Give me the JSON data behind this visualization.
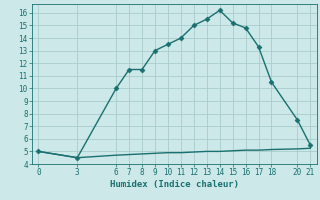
{
  "xlabel": "Humidex (Indice chaleur)",
  "x_data": [
    0,
    3,
    6,
    7,
    8,
    9,
    10,
    11,
    12,
    13,
    14,
    15,
    16,
    17,
    18,
    20,
    21
  ],
  "y_data": [
    5,
    4.5,
    10,
    11.5,
    11.5,
    13,
    13.5,
    14,
    15,
    15.5,
    16.2,
    15.2,
    14.8,
    13.3,
    10.5,
    7.5,
    5.5
  ],
  "y_data2": [
    5,
    4.5,
    4.7,
    4.75,
    4.8,
    4.85,
    4.9,
    4.9,
    4.95,
    5.0,
    5.0,
    5.05,
    5.1,
    5.1,
    5.15,
    5.2,
    5.25
  ],
  "line_color": "#1a7070",
  "bg_color": "#cce8e8",
  "grid_color": "#aacccc",
  "tick_color": "#1a7070",
  "xlim": [
    -0.5,
    21.5
  ],
  "ylim": [
    4,
    16.7
  ],
  "xticks": [
    0,
    3,
    6,
    7,
    8,
    9,
    10,
    11,
    12,
    13,
    14,
    15,
    16,
    17,
    18,
    20,
    21
  ],
  "yticks": [
    4,
    5,
    6,
    7,
    8,
    9,
    10,
    11,
    12,
    13,
    14,
    15,
    16
  ],
  "marker": "D",
  "marker_size": 2.5,
  "line_width": 1.0,
  "fontsize_tick": 5.5,
  "fontsize_label": 6.5
}
